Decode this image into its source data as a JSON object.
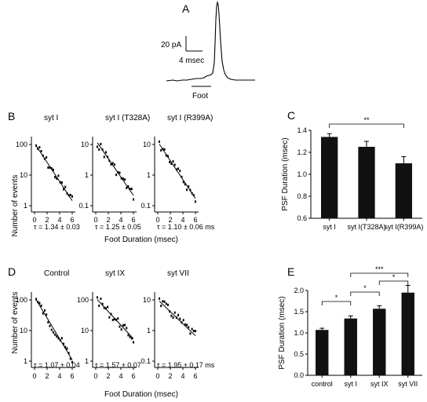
{
  "panels": {
    "a": "A",
    "b": "B",
    "c": "C",
    "d": "D",
    "e": "E"
  },
  "trace": {
    "amp_label": "20 pA",
    "time_label": "4 msec",
    "foot_label": "Foot"
  },
  "b_titles": [
    "syt I",
    "syt I (T328A)",
    "syt I (R399A)"
  ],
  "d_titles": [
    "Control",
    "syt IX",
    "syt VII"
  ],
  "b_taus": [
    "τ = 1.34 ± 0.03",
    "τ = 1.25 ± 0.05",
    "τ = 1.10 ± 0.06 ms"
  ],
  "d_taus": [
    "τ = 1.07 ± 0.04",
    "τ = 1.57 ± 0.07",
    "τ = 1.95 ± 0.17 ms"
  ],
  "hist_ylabel": "Number of events",
  "hist_xlabel": "Foot Duration (msec)",
  "hist_xticks": [
    "0",
    "2",
    "4",
    "6"
  ],
  "b_yticks": [
    [
      "100",
      "10",
      "1"
    ],
    [
      "10",
      "1",
      "0.1"
    ],
    [
      "10",
      "1",
      "0.1"
    ]
  ],
  "d_yticks": [
    [
      "100",
      "10",
      "1"
    ],
    [
      "100",
      "10",
      "1"
    ],
    [
      "10",
      "1",
      "0.1"
    ]
  ],
  "colors": {
    "bar": "#111111",
    "line": "#000000"
  },
  "chart_data": [
    {
      "type": "bar",
      "panel": "C",
      "ylabel": "PSF Duration (msec)",
      "categories": [
        "syt I",
        "syt I(T328A)",
        "syt I(R399A)"
      ],
      "values": [
        1.34,
        1.25,
        1.1
      ],
      "errors": [
        0.03,
        0.05,
        0.06
      ],
      "ylim": [
        0.6,
        1.4
      ],
      "yticks": [
        "0.6",
        "0.8",
        "1.0",
        "1.2",
        "1.4"
      ],
      "significance": [
        {
          "from": 0,
          "to": 2,
          "label": "**"
        }
      ]
    },
    {
      "type": "bar",
      "panel": "E",
      "ylabel": "PSF Duration (msec)",
      "categories": [
        "control",
        "syt I",
        "syt IX",
        "syt VII"
      ],
      "values": [
        1.07,
        1.34,
        1.57,
        1.95
      ],
      "errors": [
        0.04,
        0.06,
        0.07,
        0.17
      ],
      "ylim": [
        0.0,
        2.0
      ],
      "yticks": [
        "0.0",
        "0.5",
        "1.0",
        "1.5",
        "2.0"
      ],
      "significance": [
        {
          "from": 0,
          "to": 1,
          "label": "*"
        },
        {
          "from": 1,
          "to": 2,
          "label": "*"
        },
        {
          "from": 2,
          "to": 3,
          "label": "*"
        },
        {
          "from": 1,
          "to": 3,
          "label": "***"
        }
      ]
    }
  ]
}
